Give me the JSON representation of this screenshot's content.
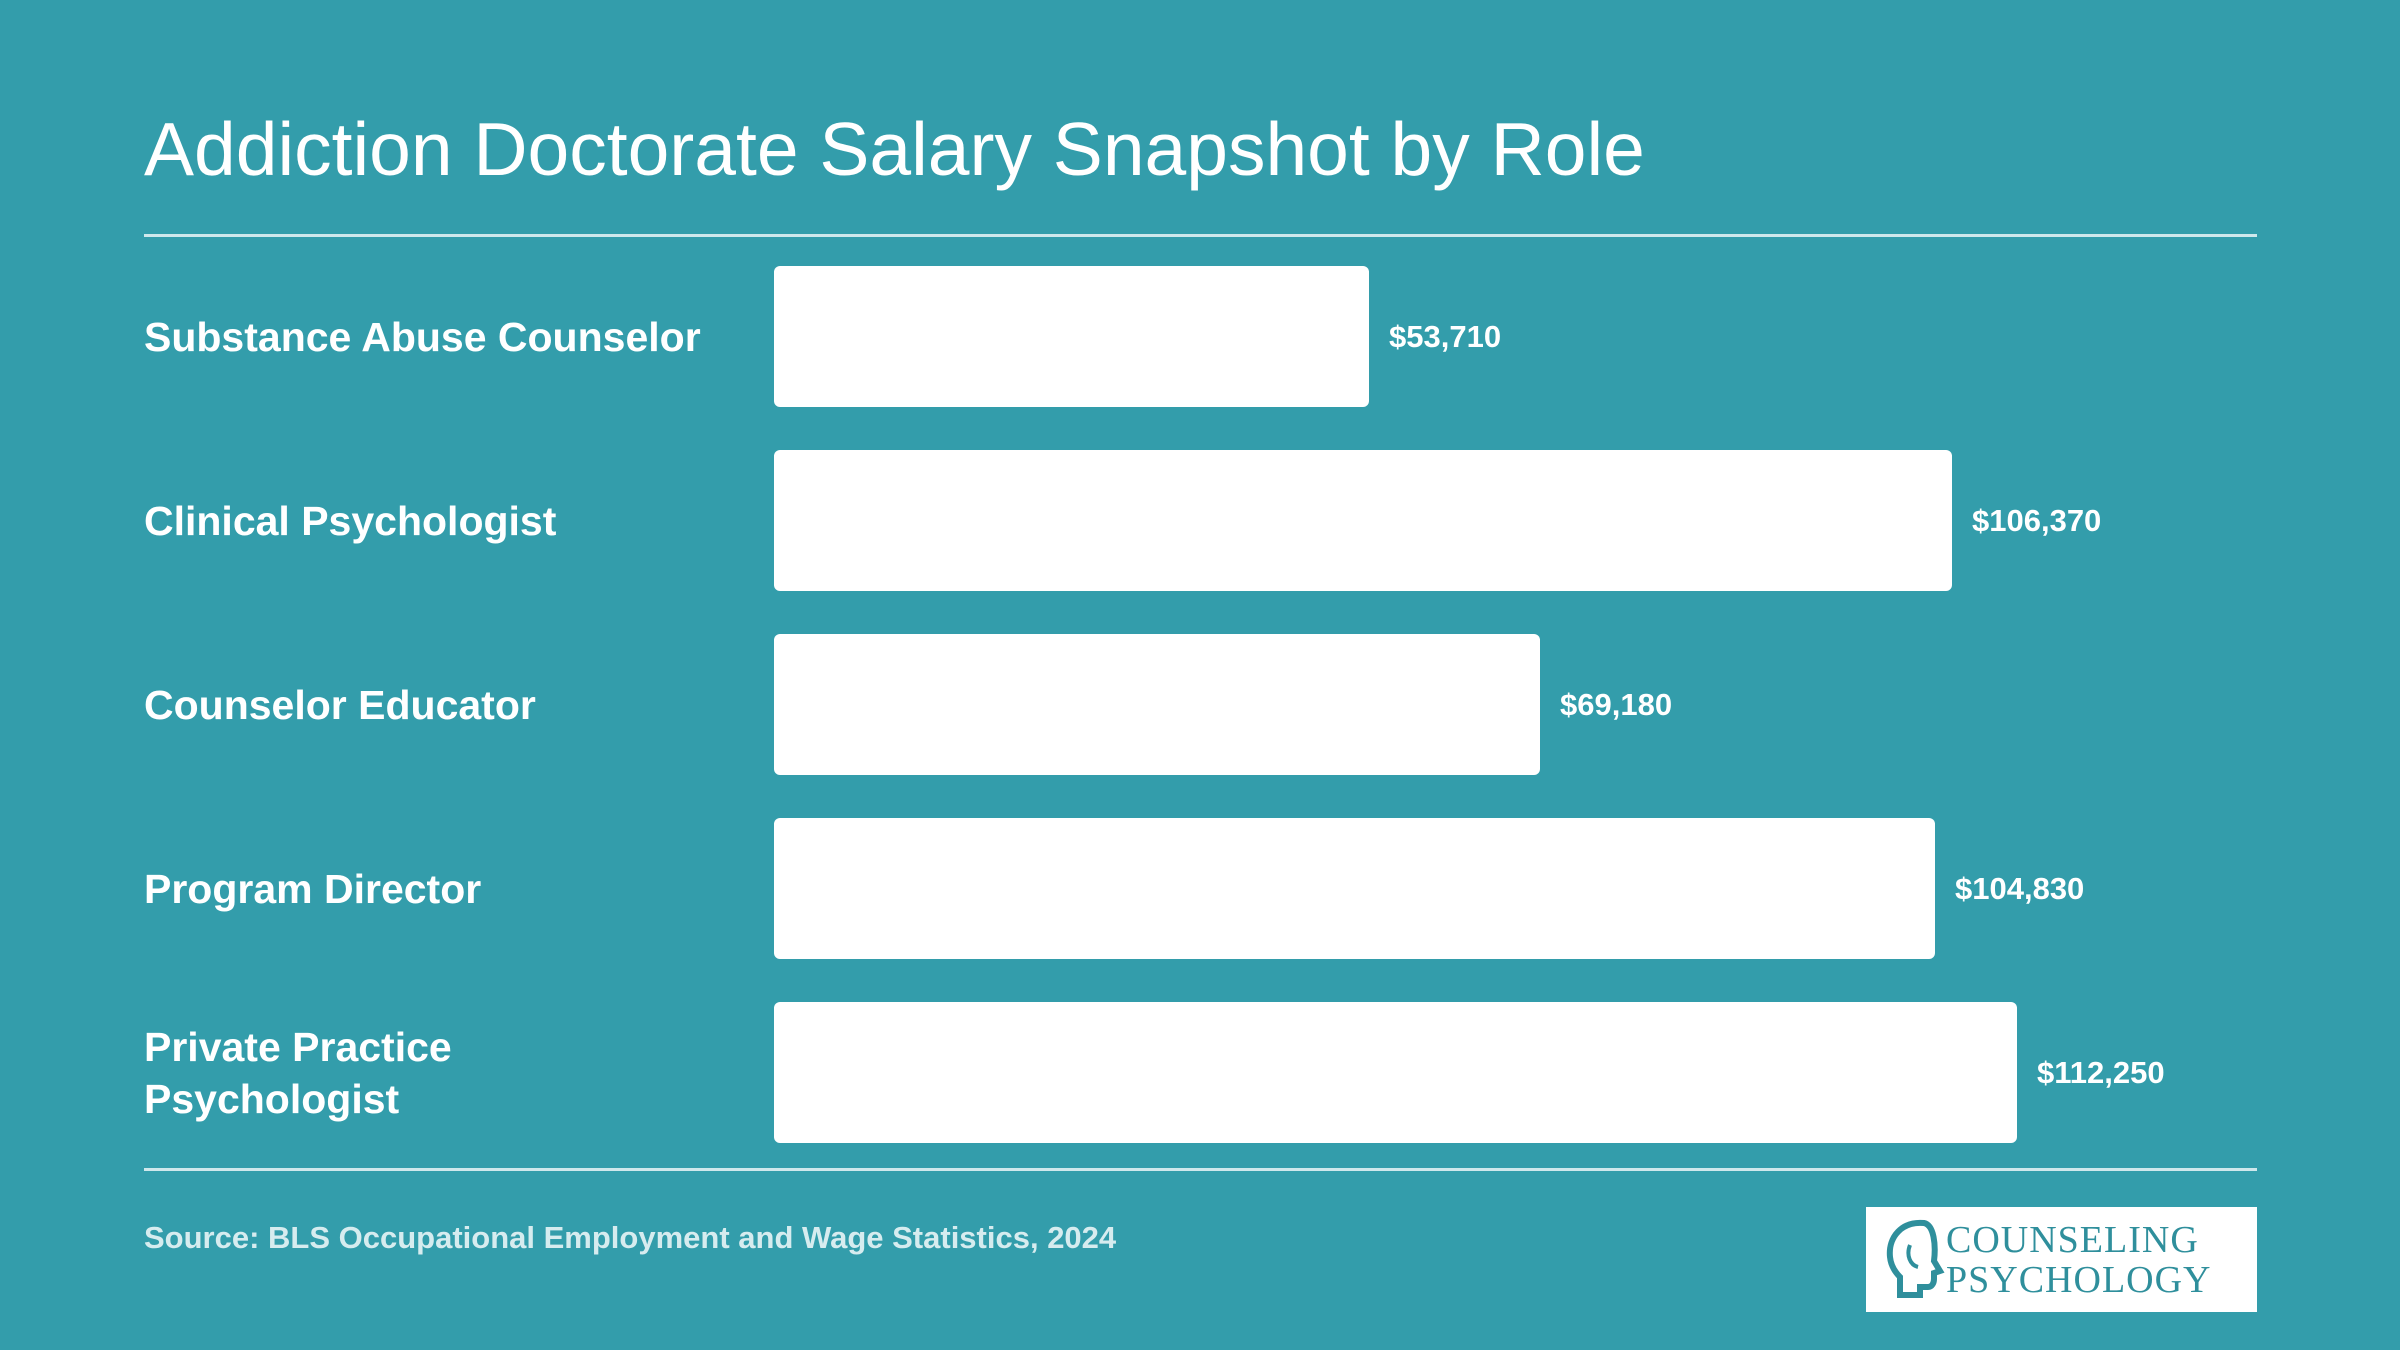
{
  "header": {
    "title": "Addiction Doctorate Salary Snapshot by Role"
  },
  "chart_data": {
    "type": "bar",
    "orientation": "horizontal",
    "title": "Addiction Doctorate Salary Snapshot by Role",
    "categories": [
      "Substance Abuse Counselor",
      "Clinical Psychologist",
      "Counselor Educator",
      "Program Director",
      "Private Practice Psychologist"
    ],
    "values": [
      53710,
      106370,
      69180,
      104830,
      112250
    ],
    "value_labels": [
      "$53,710",
      "$106,370",
      "$69,180",
      "$104,830",
      "$112,250"
    ],
    "xlim": [
      0,
      112250
    ],
    "grid": false,
    "legend": "none",
    "bar_color": "#ffffff",
    "background_color": "#339dab"
  },
  "footer": {
    "source": "Source: BLS Occupational Employment and Wage Statistics, 2024",
    "logo_line1": "COUNSELING",
    "logo_line2": "PSYCHOLOGY"
  }
}
